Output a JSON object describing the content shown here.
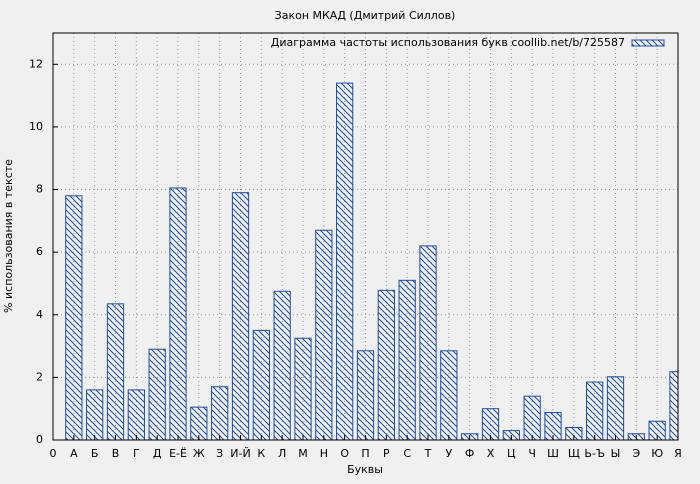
{
  "chart_data": {
    "type": "bar",
    "title": "Закон МКАД (Дмитрий Силлов)",
    "xlabel": "Буквы",
    "ylabel": "% использования в тексте",
    "x": [
      1,
      2,
      3,
      4,
      5,
      6,
      7,
      8,
      9,
      10,
      11,
      12,
      13,
      14,
      15,
      16,
      17,
      18,
      19,
      20,
      21,
      22,
      23,
      24,
      25,
      26,
      27,
      28,
      29,
      30
    ],
    "series": [
      {
        "name": "Диаграмма частоты использования букв coollib.net/b/725587",
        "color": "#1f4e9c",
        "values": [
          7.8,
          1.6,
          4.35,
          1.6,
          2.9,
          8.05,
          1.05,
          1.7,
          7.9,
          3.5,
          4.75,
          3.25,
          6.7,
          11.4,
          2.85,
          4.78,
          5.1,
          6.2,
          2.85,
          0.2,
          1.0,
          0.3,
          1.4,
          0.88,
          0.4,
          1.85,
          2.02,
          0.2,
          0.6,
          2.18
        ]
      }
    ],
    "xlim": [
      0,
      30
    ],
    "xticks": [
      0,
      {
        "value": 1,
        "label": "А"
      },
      {
        "value": 2,
        "label": "Б"
      },
      {
        "value": 3,
        "label": "В"
      },
      {
        "value": 4,
        "label": "Г"
      },
      {
        "value": 5,
        "label": "Д"
      },
      {
        "value": 6,
        "label": "Е-Ё"
      },
      {
        "value": 7,
        "label": "Ж"
      },
      {
        "value": 8,
        "label": "З"
      },
      {
        "value": 9,
        "label": "И-Й"
      },
      {
        "value": 10,
        "label": "К"
      },
      {
        "value": 11,
        "label": "Л"
      },
      {
        "value": 12,
        "label": "М"
      },
      {
        "value": 13,
        "label": "Н"
      },
      {
        "value": 14,
        "label": "О"
      },
      {
        "value": 15,
        "label": "П"
      },
      {
        "value": 16,
        "label": "Р"
      },
      {
        "value": 17,
        "label": "С"
      },
      {
        "value": 18,
        "label": "Т"
      },
      {
        "value": 19,
        "label": "У"
      },
      {
        "value": 20,
        "label": "Ф"
      },
      {
        "value": 21,
        "label": "Х"
      },
      {
        "value": 22,
        "label": "Ц"
      },
      {
        "value": 23,
        "label": "Ч"
      },
      {
        "value": 24,
        "label": "Ш"
      },
      {
        "value": 25,
        "label": "Щ"
      },
      {
        "value": 26,
        "label": "Ь-Ъ"
      },
      {
        "value": 27,
        "label": "Ы"
      },
      {
        "value": 28,
        "label": "Э"
      },
      {
        "value": 29,
        "label": "Ю"
      },
      {
        "value": 30,
        "label": "Я"
      }
    ],
    "ylim": [
      0,
      13
    ],
    "yticks": [
      0,
      2,
      4,
      6,
      8,
      10,
      12
    ],
    "grid": true,
    "legend": "top-right"
  }
}
